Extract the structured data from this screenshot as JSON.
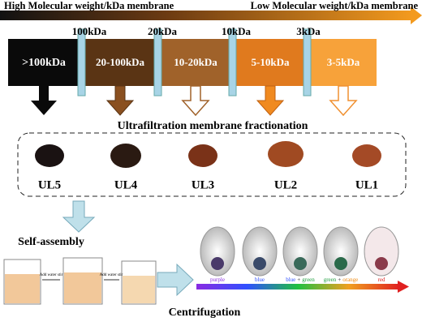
{
  "header": {
    "high": "High Molecular weight/kDa membrane",
    "low": "Low Molecular weight/kDa membrane"
  },
  "cutoffs": [
    "100kDa",
    "20kDa",
    "10kDa",
    "3kDa"
  ],
  "fractions": [
    ">100kDa",
    "20-100kDa",
    "10-20kDa",
    "5-10kDa",
    "3-5kDa"
  ],
  "fractionation_title": "Ultrafiltration membrane fractionation",
  "samples": [
    "UL5",
    "UL4",
    "UL3",
    "UL2",
    "UL1"
  ],
  "self_assembly": "Self-assembly",
  "steps": [
    "Add water stir",
    "Add water stir"
  ],
  "centrifugation": "Centrifugation",
  "vial_colors": [
    [
      "purple"
    ],
    [
      "blue"
    ],
    [
      "blue",
      "+",
      "green"
    ],
    [
      "green",
      "+",
      "orange"
    ],
    [
      "red"
    ]
  ]
}
